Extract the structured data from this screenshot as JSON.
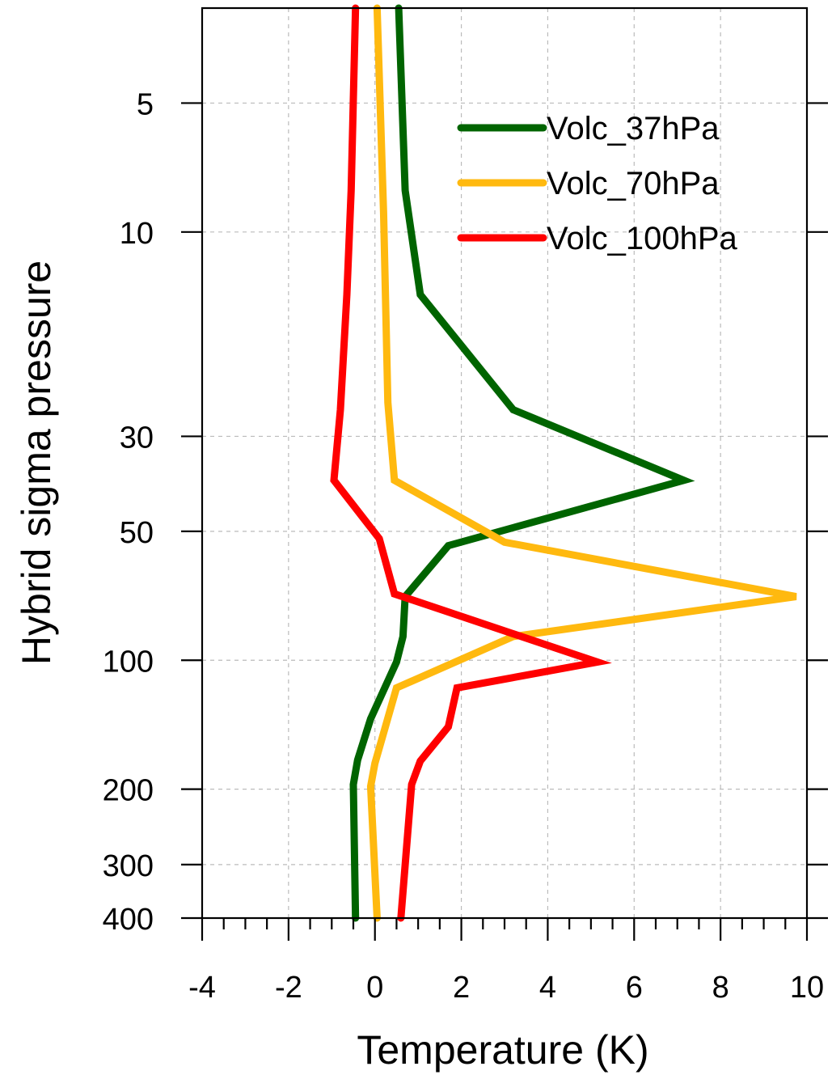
{
  "chart_data": {
    "type": "line",
    "orientation": "profile",
    "xlabel": "Temperature (K)",
    "ylabel": "Hybrid sigma pressure",
    "xlim": [
      -4,
      10
    ],
    "ylim": [
      400,
      3
    ],
    "y_scale": "log",
    "y_reversed": true,
    "grid": true,
    "legend_position": "top-right",
    "x_ticks": [
      "-4",
      "-2",
      "0",
      "2",
      "4",
      "6",
      "8",
      "10"
    ],
    "y_ticks": [
      "5",
      "10",
      "30",
      "50",
      "100",
      "200",
      "300",
      "400"
    ],
    "series": [
      {
        "name": "Volc_37hPa",
        "color": "#006400",
        "points": [
          {
            "x": 0.55,
            "y": 3
          },
          {
            "x": 0.7,
            "y": 8
          },
          {
            "x": 1.05,
            "y": 14
          },
          {
            "x": 3.2,
            "y": 26
          },
          {
            "x": 7.15,
            "y": 38
          },
          {
            "x": 1.7,
            "y": 54
          },
          {
            "x": 0.7,
            "y": 71
          },
          {
            "x": 0.65,
            "y": 88
          },
          {
            "x": 0.5,
            "y": 101
          },
          {
            "x": -0.1,
            "y": 137
          },
          {
            "x": -0.4,
            "y": 171
          },
          {
            "x": -0.5,
            "y": 195
          },
          {
            "x": -0.45,
            "y": 400
          }
        ]
      },
      {
        "name": "Volc_70hPa",
        "color": "#FFB90F",
        "points": [
          {
            "x": 0.05,
            "y": 3
          },
          {
            "x": 0.2,
            "y": 9
          },
          {
            "x": 0.3,
            "y": 25
          },
          {
            "x": 0.45,
            "y": 38
          },
          {
            "x": 3.0,
            "y": 53
          },
          {
            "x": 9.75,
            "y": 71
          },
          {
            "x": 3.2,
            "y": 88
          },
          {
            "x": 0.5,
            "y": 116
          },
          {
            "x": 0.0,
            "y": 174
          },
          {
            "x": -0.1,
            "y": 197
          },
          {
            "x": 0.05,
            "y": 400
          }
        ]
      },
      {
        "name": "Volc_100hPa",
        "color": "#FF0000",
        "points": [
          {
            "x": -0.45,
            "y": 3
          },
          {
            "x": -0.55,
            "y": 8
          },
          {
            "x": -0.65,
            "y": 14
          },
          {
            "x": -0.8,
            "y": 26
          },
          {
            "x": -0.95,
            "y": 38
          },
          {
            "x": 0.1,
            "y": 52
          },
          {
            "x": 0.45,
            "y": 70
          },
          {
            "x": 5.15,
            "y": 101
          },
          {
            "x": 1.9,
            "y": 116
          },
          {
            "x": 1.7,
            "y": 143
          },
          {
            "x": 1.05,
            "y": 172
          },
          {
            "x": 0.85,
            "y": 195
          },
          {
            "x": 0.6,
            "y": 400
          }
        ]
      }
    ]
  }
}
